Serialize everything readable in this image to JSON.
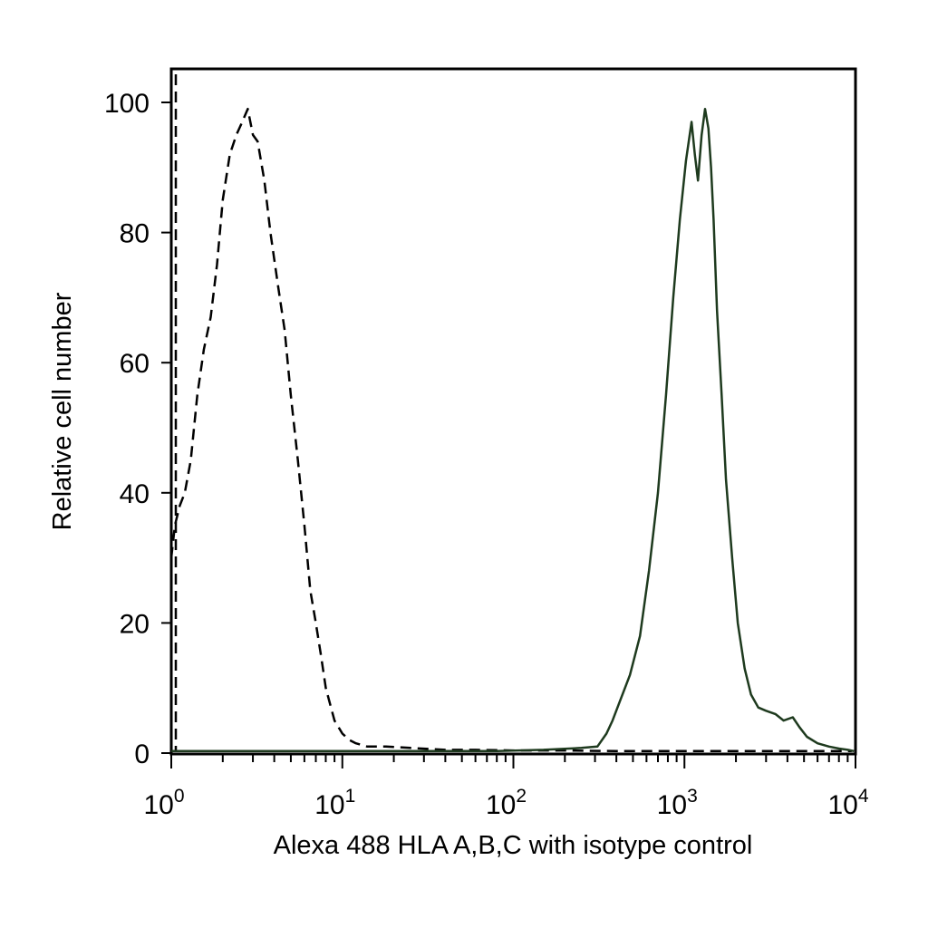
{
  "chart_data": {
    "type": "line",
    "xlabel": "Alexa 488 HLA A,B,C with isotype control",
    "ylabel": "Relative cell number",
    "x_scale": "log",
    "xlim": [
      1,
      10000
    ],
    "ylim": [
      0,
      100
    ],
    "x_ticks": [
      {
        "value": 1,
        "base": "10",
        "exp": "0"
      },
      {
        "value": 10,
        "base": "10",
        "exp": "1"
      },
      {
        "value": 100,
        "base": "10",
        "exp": "2"
      },
      {
        "value": 1000,
        "base": "10",
        "exp": "3"
      },
      {
        "value": 10000,
        "base": "10",
        "exp": "4"
      }
    ],
    "y_ticks": [
      0,
      20,
      40,
      60,
      80,
      100
    ],
    "grid": false,
    "legend": "none",
    "series": [
      {
        "style": "dashed",
        "color": "#000000",
        "x": [
          1.0,
          1.05,
          1.12,
          1.2,
          1.3,
          1.42,
          1.55,
          1.7,
          1.85,
          2.0,
          2.2,
          2.4,
          2.6,
          2.8,
          3.0,
          3.2,
          3.5,
          3.8,
          4.2,
          4.6,
          5.0,
          5.5,
          6.0,
          6.5,
          7.0,
          7.5,
          8.0,
          9.0,
          10.0,
          11.0,
          12.0,
          14.0,
          18.0,
          25.0,
          40.0,
          60.0,
          100.0,
          200.0,
          400.0,
          1000.0,
          2000.0,
          4000.0,
          9500.0
        ],
        "y": [
          30,
          35,
          38,
          40,
          45,
          55,
          62,
          67,
          75,
          85,
          92,
          95,
          97,
          99,
          95,
          94,
          88,
          80,
          72,
          65,
          55,
          45,
          35,
          25,
          20,
          15,
          10,
          5,
          3,
          2,
          1.5,
          1,
          1,
          0.8,
          0.5,
          0.5,
          0.4,
          0.4,
          0.3,
          0.3,
          0.3,
          0.3,
          0.3
        ]
      },
      {
        "style": "solid",
        "color": "#1e3a1e",
        "x": [
          1.0,
          5.0,
          20.0,
          80.0,
          150.0,
          250.0,
          310.0,
          350.0,
          380.0,
          420.0,
          480.0,
          550.0,
          620.0,
          700.0,
          780.0,
          860.0,
          940.0,
          1020.0,
          1100.0,
          1150.0,
          1200.0,
          1260.0,
          1320.0,
          1380.0,
          1430.0,
          1480.0,
          1550.0,
          1650.0,
          1750.0,
          1900.0,
          2050.0,
          2250.0,
          2450.0,
          2700.0,
          3000.0,
          3400.0,
          3800.0,
          4300.0,
          4700.0,
          5200.0,
          6000.0,
          7000.0,
          8000.0,
          9000.0,
          9800.0
        ],
        "y": [
          0.3,
          0.3,
          0.3,
          0.3,
          0.5,
          0.8,
          1,
          3,
          5,
          8,
          12,
          18,
          28,
          40,
          55,
          70,
          82,
          91,
          97,
          92,
          88,
          95,
          99,
          96,
          90,
          82,
          68,
          55,
          42,
          30,
          20,
          13,
          9,
          7,
          6.5,
          6,
          5,
          5.5,
          4,
          2.5,
          1.5,
          1,
          0.7,
          0.5,
          0.3
        ]
      }
    ]
  }
}
